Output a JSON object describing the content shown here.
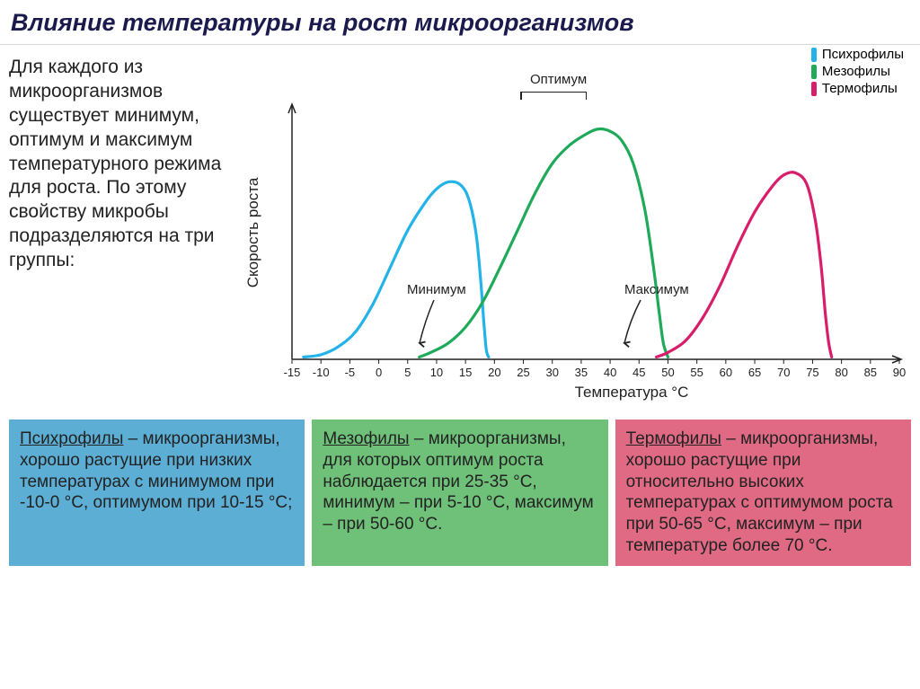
{
  "title": "Влияние температуры на рост микроорганизмов",
  "intro": "Для каждого из микроорганизмов существует минимум, оптимум и максимум температурного режима для роста. По этому свойству микробы подразделяются на три группы:",
  "chart": {
    "type": "line",
    "xlabel": "Температура °С",
    "ylabel": "Скорость роста",
    "xmin": -15,
    "xmax": 90,
    "xtick_step": 5,
    "ymin": 0,
    "ymax": 1.1,
    "line_width": 3.2,
    "axis_color": "#222222",
    "background_color": "#ffffff",
    "series": [
      {
        "name": "Психрофилы",
        "color": "#23b3e8",
        "points": [
          [
            -13,
            0.01
          ],
          [
            -10,
            0.02
          ],
          [
            -7,
            0.055
          ],
          [
            -4,
            0.12
          ],
          [
            -1,
            0.24
          ],
          [
            2,
            0.4
          ],
          [
            5,
            0.56
          ],
          [
            8,
            0.68
          ],
          [
            10,
            0.74
          ],
          [
            12,
            0.77
          ],
          [
            14,
            0.76
          ],
          [
            15.5,
            0.7
          ],
          [
            16.8,
            0.55
          ],
          [
            17.6,
            0.35
          ],
          [
            18.2,
            0.15
          ],
          [
            18.6,
            0.04
          ],
          [
            19,
            0.01
          ]
        ]
      },
      {
        "name": "Мезофилы",
        "color": "#1faa5a",
        "points": [
          [
            7,
            0.01
          ],
          [
            9,
            0.03
          ],
          [
            12,
            0.07
          ],
          [
            15,
            0.14
          ],
          [
            18,
            0.25
          ],
          [
            21,
            0.4
          ],
          [
            24,
            0.56
          ],
          [
            27,
            0.72
          ],
          [
            30,
            0.85
          ],
          [
            33,
            0.93
          ],
          [
            36,
            0.98
          ],
          [
            38,
            1.0
          ],
          [
            40,
            0.99
          ],
          [
            42,
            0.95
          ],
          [
            44,
            0.85
          ],
          [
            46,
            0.65
          ],
          [
            47.5,
            0.4
          ],
          [
            48.5,
            0.2
          ],
          [
            49.2,
            0.07
          ],
          [
            50,
            0.01
          ]
        ]
      },
      {
        "name": "Термофилы",
        "color": "#d81e6a",
        "points": [
          [
            48,
            0.01
          ],
          [
            50,
            0.03
          ],
          [
            53,
            0.08
          ],
          [
            56,
            0.18
          ],
          [
            59,
            0.32
          ],
          [
            62,
            0.49
          ],
          [
            65,
            0.64
          ],
          [
            68,
            0.75
          ],
          [
            70,
            0.8
          ],
          [
            72,
            0.81
          ],
          [
            74,
            0.76
          ],
          [
            75.5,
            0.6
          ],
          [
            76.5,
            0.4
          ],
          [
            77.2,
            0.2
          ],
          [
            77.8,
            0.07
          ],
          [
            78.3,
            0.01
          ]
        ]
      }
    ],
    "annotations": {
      "optimum": "Оптимум",
      "minimum": "Минимум",
      "maximum": "Максимум"
    }
  },
  "legend": {
    "items": [
      {
        "label": "Психрофилы",
        "color": "#23b3e8"
      },
      {
        "label": "Мезофилы",
        "color": "#1faa5a"
      },
      {
        "label": "Термофилы",
        "color": "#d81e6a"
      }
    ]
  },
  "boxes": [
    {
      "bg": "#5daed4",
      "title": "Психрофилы",
      "body": " – микроорганизмы, хорошо растущие при низких температурах с минимумом при -10-0 °С, оптимумом при 10-15 °С;"
    },
    {
      "bg": "#6fc17a",
      "title": "Мезофилы",
      "body": " – микроорганизмы, для которых оптимум роста наблюдается при 25-35 °С, минимум – при 5-10 °С, максимум – при 50-60 °С."
    },
    {
      "bg": "#e06a84",
      "title": "Термофилы",
      "body": " – микроорганизмы, хорошо растущие при относительно высоких температурах с оптимумом роста при 50-65 °С, максимум – при температуре более 70 °С."
    }
  ]
}
